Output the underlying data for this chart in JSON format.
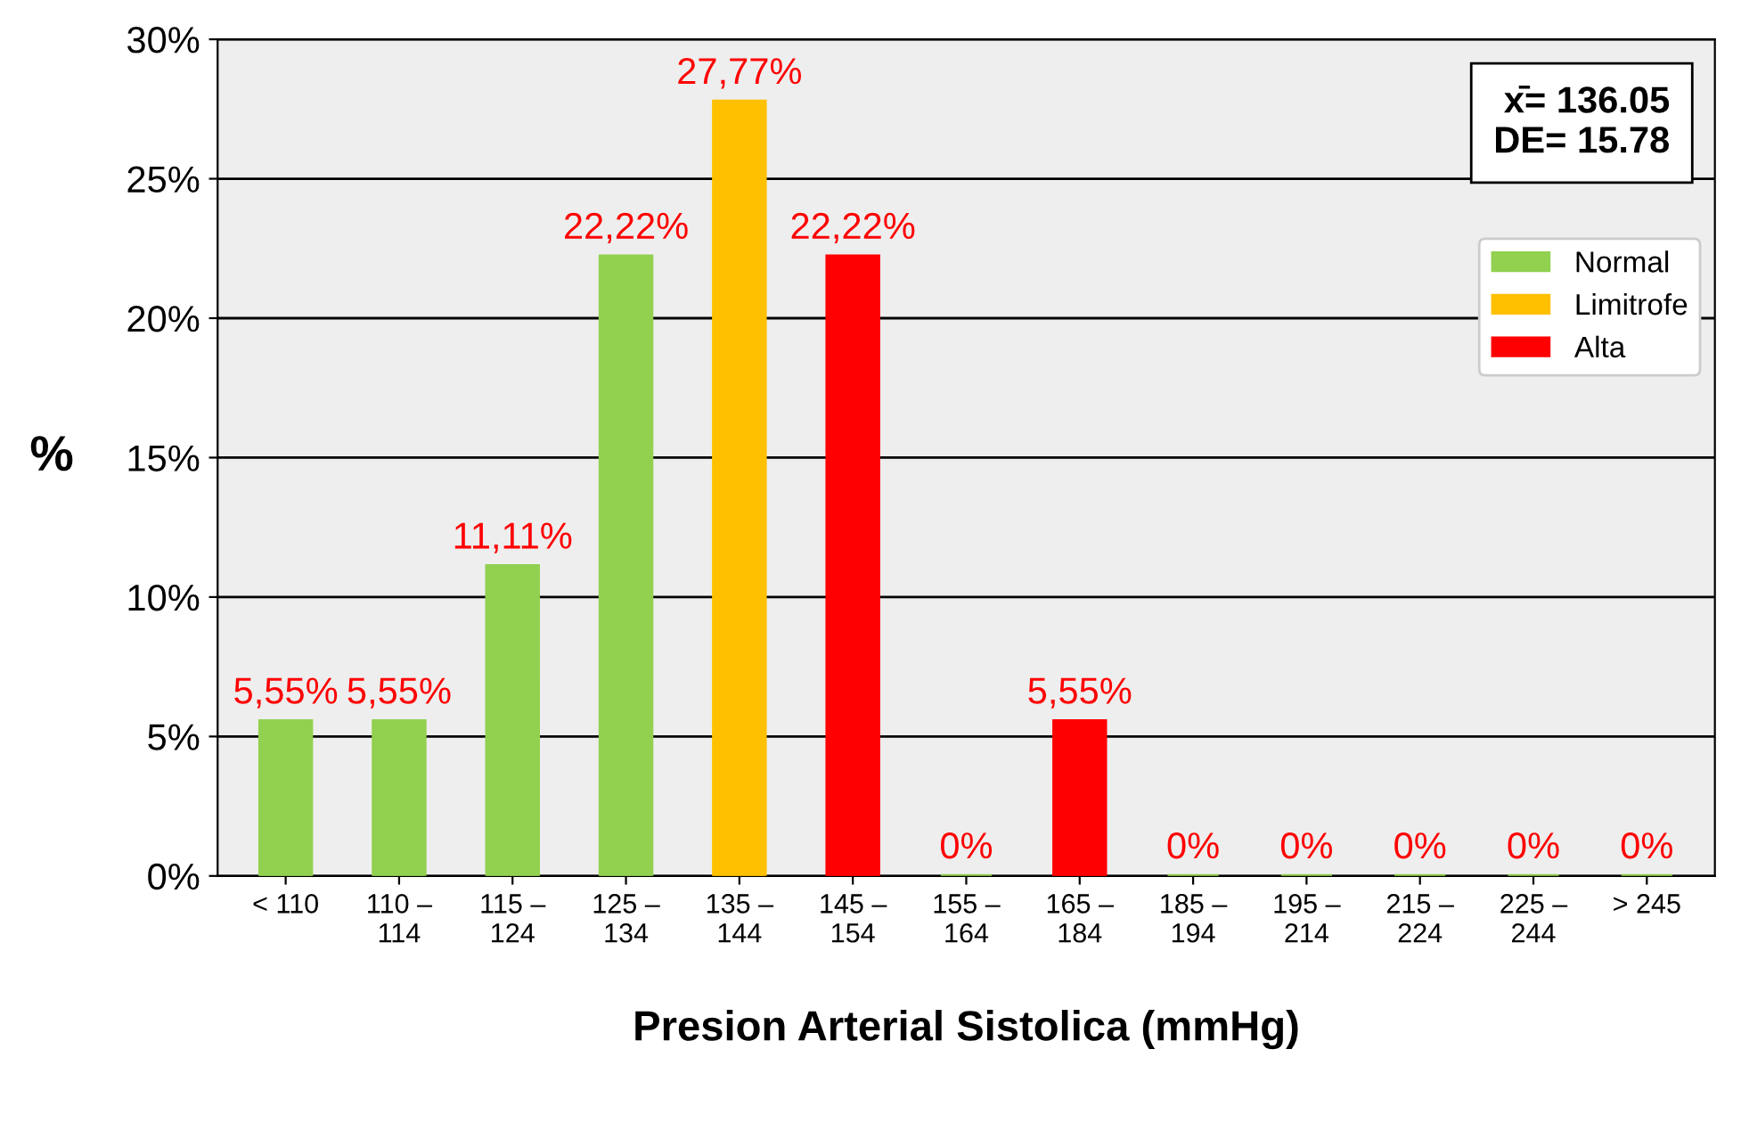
{
  "chart_data": {
    "type": "bar",
    "xlabel": "Presion Arterial Sistolica (mmHg)",
    "ylabel": "%",
    "categories": [
      "< 110",
      "110 –\n114",
      "115 –\n124",
      "125 –\n134",
      "135 –\n144",
      "145 –\n154",
      "155 –\n164",
      "165 –\n184",
      "185 –\n194",
      "195 –\n214",
      "215 –\n224",
      "225 –\n244",
      "> 245"
    ],
    "series": [
      {
        "name": "Normal",
        "color": "#92d050",
        "values": [
          5.55,
          5.55,
          11.11,
          22.22,
          null,
          null,
          0,
          null,
          0,
          0,
          0,
          0,
          0
        ],
        "value_labels": [
          "5,55%",
          "5,55%",
          "11,11%",
          "22,22%",
          null,
          null,
          "0%",
          null,
          "0%",
          "0%",
          "0%",
          "0%",
          "0%"
        ]
      },
      {
        "name": "Limitrofe",
        "color": "#ffc000",
        "values": [
          null,
          null,
          null,
          null,
          27.77,
          null,
          null,
          null,
          null,
          null,
          null,
          null,
          null
        ],
        "value_labels": [
          null,
          null,
          null,
          null,
          "27,77%",
          null,
          null,
          null,
          null,
          null,
          null,
          null,
          null
        ]
      },
      {
        "name": "Alta",
        "color": "#ff0000",
        "values": [
          null,
          null,
          null,
          null,
          null,
          22.22,
          null,
          5.55,
          null,
          null,
          null,
          null,
          null
        ],
        "value_labels": [
          null,
          null,
          null,
          null,
          null,
          "22,22%",
          null,
          "5,55%",
          null,
          null,
          null,
          null,
          null
        ]
      }
    ],
    "ylim": [
      0,
      30
    ],
    "yticks": [
      {
        "value": 0,
        "label": "0%"
      },
      {
        "value": 5,
        "label": "5%"
      },
      {
        "value": 10,
        "label": "10%"
      },
      {
        "value": 15,
        "label": "15%"
      },
      {
        "value": 20,
        "label": "20%"
      },
      {
        "value": 25,
        "label": "25%"
      },
      {
        "value": 30,
        "label": "30%"
      }
    ],
    "grid": "y",
    "legend": "right",
    "annotations": [
      "x̄= 136.05\nDE= 15.78"
    ]
  }
}
